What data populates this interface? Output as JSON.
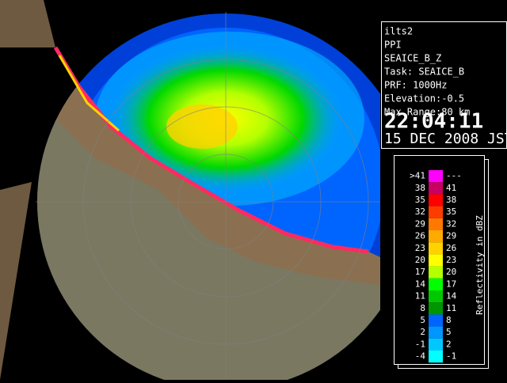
{
  "info": {
    "lines": [
      "ilts2",
      "PPI",
      "SEAICE_B_Z",
      "Task: SEAICE_B",
      "PRF: 1000Hz",
      "Elevation:-0.5",
      "Max Range:80 km"
    ],
    "time": "22:04:11",
    "date": "15 DEC 2008 JST"
  },
  "legend": {
    "title": "Reflectivity in dBZ",
    "rows": [
      {
        "low": ">41",
        "high": "---",
        "color": "#ff00ff"
      },
      {
        "low": "38",
        "high": "41",
        "color": "#c80064"
      },
      {
        "low": "35",
        "high": "38",
        "color": "#ff0000"
      },
      {
        "low": "32",
        "high": "35",
        "color": "#ff3c00"
      },
      {
        "low": "29",
        "high": "32",
        "color": "#ff7800"
      },
      {
        "low": "26",
        "high": "29",
        "color": "#ffaa00"
      },
      {
        "low": "23",
        "high": "26",
        "color": "#ffd200"
      },
      {
        "low": "20",
        "high": "23",
        "color": "#ffff00"
      },
      {
        "low": "17",
        "high": "20",
        "color": "#b4ff00"
      },
      {
        "low": "14",
        "high": "17",
        "color": "#00ff00"
      },
      {
        "low": "11",
        "high": "14",
        "color": "#00c800"
      },
      {
        "low": "8",
        "high": "11",
        "color": "#009600"
      },
      {
        "low": "5",
        "high": "8",
        "color": "#0064ff"
      },
      {
        "low": "2",
        "high": "5",
        "color": "#0096ff"
      },
      {
        "low": "-1",
        "high": "2",
        "color": "#00c8ff"
      },
      {
        "low": "-4",
        "high": "-1",
        "color": "#00ffff"
      }
    ]
  }
}
